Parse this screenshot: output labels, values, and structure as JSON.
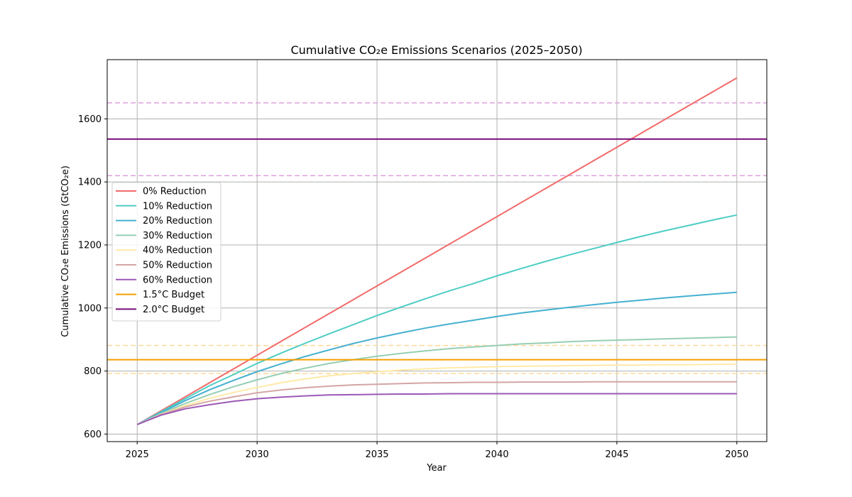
{
  "chart_data": {
    "type": "line",
    "title": "Cumulative CO₂e Emissions Scenarios (2025–2050)",
    "xlabel": "Year",
    "ylabel": "Cumulative CO₂e Emissions (GtCO₂e)",
    "xlim": [
      2023.75,
      2051.25
    ],
    "ylim": [
      576,
      1788
    ],
    "xticks": [
      2025,
      2030,
      2035,
      2040,
      2045,
      2050
    ],
    "yticks": [
      600,
      800,
      1000,
      1200,
      1400,
      1600
    ],
    "grid": true,
    "legend_position": "center-left",
    "x": [
      2025,
      2026,
      2027,
      2028,
      2029,
      2030,
      2031,
      2032,
      2033,
      2034,
      2035,
      2036,
      2037,
      2038,
      2039,
      2040,
      2041,
      2042,
      2043,
      2044,
      2045,
      2046,
      2047,
      2048,
      2049,
      2050
    ],
    "series": [
      {
        "name": "0% Reduction",
        "color": "#f26b6b",
        "values": [
          630,
          674,
          718,
          762,
          806,
          850,
          894,
          938,
          982,
          1026,
          1070,
          1114,
          1158,
          1202,
          1246,
          1290,
          1334,
          1378,
          1422,
          1466,
          1510,
          1554,
          1598,
          1642,
          1686,
          1730
        ]
      },
      {
        "name": "10% Reduction",
        "color": "#4ecdc4",
        "values": [
          630,
          671,
          712,
          753,
          788,
          824,
          857,
          888,
          918,
          947,
          976,
          1003,
          1029,
          1054,
          1077,
          1102,
          1125,
          1147,
          1168,
          1188,
          1208,
          1227,
          1245,
          1262,
          1279,
          1295
        ]
      },
      {
        "name": "20% Reduction",
        "color": "#45b0d1",
        "values": [
          630,
          668,
          706,
          740,
          770,
          798,
          823,
          846,
          867,
          887,
          905,
          921,
          936,
          949,
          961,
          973,
          984,
          993,
          1002,
          1010,
          1018,
          1025,
          1032,
          1038,
          1044,
          1050
        ]
      },
      {
        "name": "30% Reduction",
        "color": "#96ceb4",
        "values": [
          630,
          665,
          697,
          725,
          750,
          772,
          792,
          809,
          824,
          836,
          847,
          856,
          864,
          871,
          876,
          881,
          886,
          889,
          893,
          896,
          898,
          900,
          902,
          904,
          906,
          908
        ]
      },
      {
        "name": "40% Reduction",
        "color": "#ffeaa7",
        "values": [
          630,
          663,
          690,
          713,
          732,
          748,
          763,
          775,
          785,
          792,
          798,
          803,
          807,
          810,
          812,
          814,
          815,
          816,
          817,
          818,
          819,
          819,
          820,
          820,
          821,
          822
        ]
      },
      {
        "name": "50% Reduction",
        "color": "#d4a5a5",
        "values": [
          630,
          662,
          686,
          704,
          718,
          731,
          740,
          747,
          752,
          756,
          758,
          760,
          762,
          763,
          764,
          764,
          765,
          765,
          765,
          766,
          766,
          766,
          766,
          766,
          766,
          766
        ]
      },
      {
        "name": "60% Reduction",
        "color": "#9b59b6",
        "values": [
          630,
          660,
          680,
          693,
          704,
          712,
          717,
          721,
          724,
          725,
          726,
          727,
          727,
          728,
          728,
          728,
          728,
          728,
          728,
          728,
          728,
          728,
          728,
          728,
          728,
          728
        ]
      }
    ],
    "reference_lines": [
      {
        "name": "1.5°C Budget",
        "value": 836,
        "color": "#f5a000",
        "band": [
          792,
          881
        ],
        "band_color": "#ffd99a"
      },
      {
        "name": "2.0°C Budget",
        "value": 1536,
        "color": "#7b0f7b",
        "band": [
          1420,
          1651
        ],
        "band_color": "#dda0dd"
      }
    ]
  }
}
